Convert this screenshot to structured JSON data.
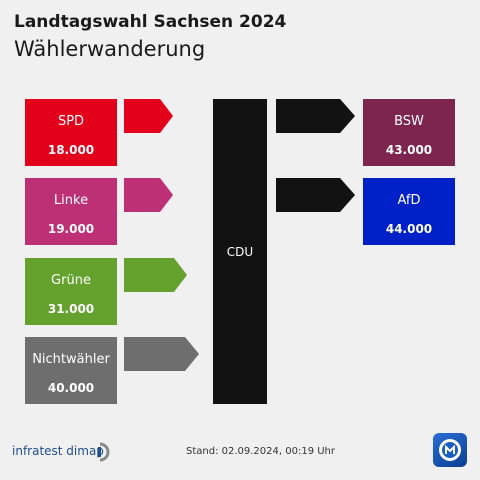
{
  "header": {
    "title": "Landtagswahl Sachsen 2024",
    "subtitle": "Wählerwanderung"
  },
  "sources": [
    {
      "label": "SPD",
      "value": "18.000",
      "color": "#e2001a"
    },
    {
      "label": "Linke",
      "value": "19.000",
      "color": "#be3075"
    },
    {
      "label": "Grüne",
      "value": "31.000",
      "color": "#64a12d"
    },
    {
      "label": "Nichtwähler",
      "value": "40.000",
      "color": "#6e6e6e"
    }
  ],
  "center": {
    "label": "CDU",
    "color": "#121212"
  },
  "targets": [
    {
      "label": "BSW",
      "value": "43.000",
      "color": "#7d254f"
    },
    {
      "label": "AfD",
      "value": "44.000",
      "color": "#0021c8"
    }
  ],
  "footer": {
    "brand": "infratest dimap",
    "stand": "Stand:  02.09.2024, 00:19 Uhr"
  }
}
